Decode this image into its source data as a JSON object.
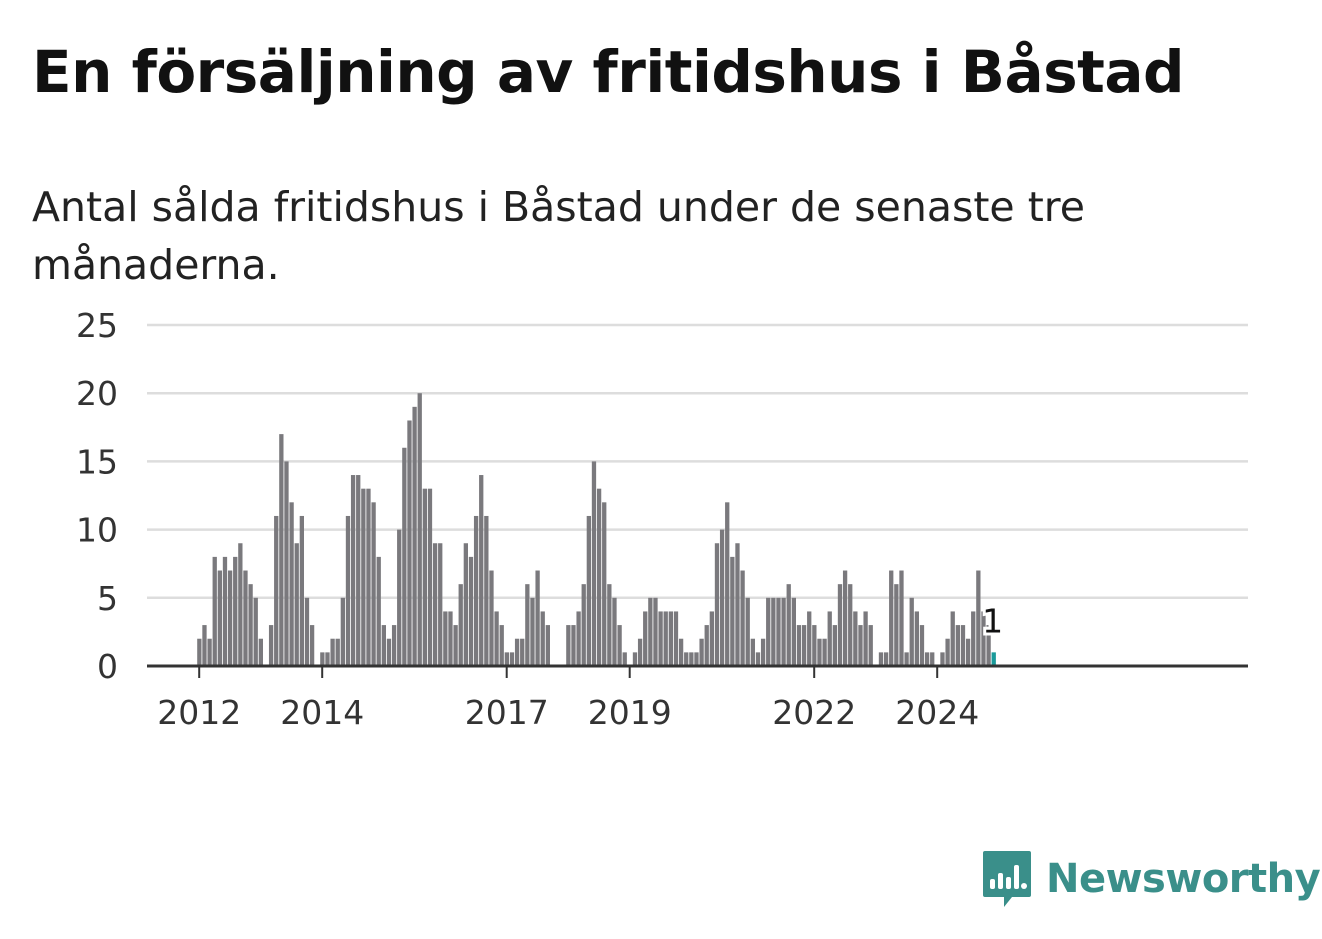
{
  "title": "En försäljning av fritidshus i Båstad",
  "subtitle": "Antal sålda fritidshus i Båstad under de senaste tre månaderna.",
  "brand": {
    "name": "Newsworthy",
    "icon": "newsworthy-logo-icon",
    "color": "#3a8f8a"
  },
  "colors": {
    "bar": "#7a797d",
    "highlight": "#1a9a9a",
    "grid": "#dddddd",
    "axis": "#333333"
  },
  "chart_data": {
    "type": "bar",
    "ylim": [
      0,
      25
    ],
    "y_ticks": [
      0,
      5,
      10,
      15,
      20,
      25
    ],
    "x_ticks": [
      {
        "label": "2012",
        "index": 0
      },
      {
        "label": "2014",
        "index": 24
      },
      {
        "label": "2017",
        "index": 60
      },
      {
        "label": "2019",
        "index": 84
      },
      {
        "label": "2022",
        "index": 120
      },
      {
        "label": "2024",
        "index": 144
      }
    ],
    "values": [
      2,
      3,
      2,
      8,
      7,
      8,
      7,
      8,
      9,
      7,
      6,
      5,
      2,
      0,
      3,
      11,
      17,
      15,
      12,
      9,
      11,
      5,
      3,
      0,
      1,
      1,
      2,
      2,
      5,
      11,
      14,
      14,
      13,
      13,
      12,
      8,
      3,
      2,
      3,
      10,
      16,
      18,
      19,
      20,
      13,
      13,
      9,
      9,
      4,
      4,
      3,
      6,
      9,
      8,
      11,
      14,
      11,
      7,
      4,
      3,
      1,
      1,
      2,
      2,
      6,
      5,
      7,
      4,
      3,
      0,
      0,
      0,
      3,
      3,
      4,
      6,
      11,
      15,
      13,
      12,
      6,
      5,
      3,
      1,
      0,
      1,
      2,
      4,
      5,
      5,
      4,
      4,
      4,
      4,
      2,
      1,
      1,
      1,
      2,
      3,
      4,
      9,
      10,
      12,
      8,
      9,
      7,
      5,
      2,
      1,
      2,
      5,
      5,
      5,
      5,
      6,
      5,
      3,
      3,
      4,
      3,
      2,
      2,
      4,
      3,
      6,
      7,
      6,
      4,
      3,
      4,
      3,
      0,
      1,
      1,
      7,
      6,
      7,
      1,
      5,
      4,
      3,
      1,
      1,
      0,
      1,
      2,
      4,
      3,
      3,
      2,
      4,
      7,
      4,
      3,
      1
    ],
    "highlight_index": 155,
    "highlight_label": "1"
  }
}
